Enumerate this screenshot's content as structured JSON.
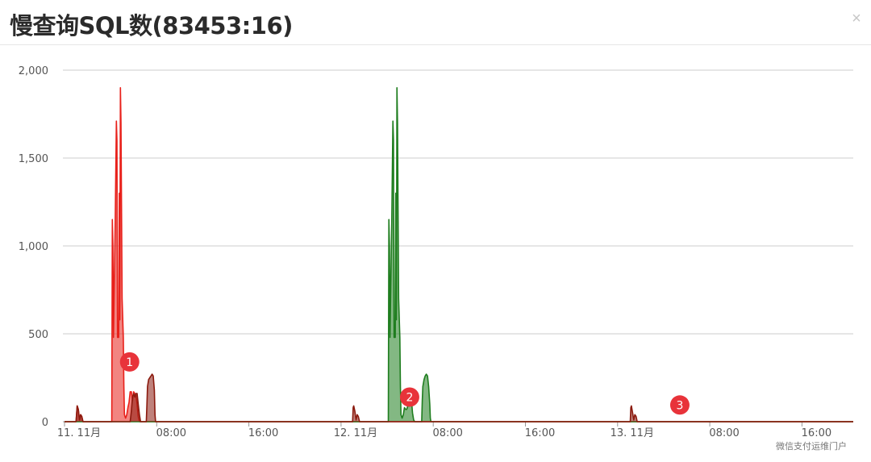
{
  "window": {
    "title": "慢查询SQL数(83453:16)",
    "close_glyph": "×"
  },
  "watermark": "微信支付运维门户",
  "colors": {
    "series_1": "#e8201a",
    "series_2": "#1e7d1e",
    "series_3": "#8b1a0e",
    "badge": "#e8333a",
    "grid": "#cccccc"
  },
  "chart_data": {
    "type": "line",
    "title": "慢查询SQL数(83453:16)",
    "ylim": [
      0,
      2000
    ],
    "yticks": [
      {
        "v": 0,
        "label": "0"
      },
      {
        "v": 500,
        "label": "500"
      },
      {
        "v": 1000,
        "label": "1,000"
      },
      {
        "v": 1500,
        "label": "1,500"
      },
      {
        "v": 2000,
        "label": "2,000"
      }
    ],
    "xlim": [
      0,
      64
    ],
    "xticks": [
      {
        "h": 0,
        "label": "11. 11月"
      },
      {
        "h": 8,
        "label": "08:00"
      },
      {
        "h": 16,
        "label": "16:00"
      },
      {
        "h": 24,
        "label": "12. 11月"
      },
      {
        "h": 32,
        "label": "08:00"
      },
      {
        "h": 40,
        "label": "16:00"
      },
      {
        "h": 48,
        "label": "13. 11月"
      },
      {
        "h": 56,
        "label": "08:00"
      },
      {
        "h": 64,
        "label": "16:00"
      }
    ],
    "grid": true,
    "series": [
      {
        "key": "s1",
        "label": "1",
        "color": "#e8201a",
        "x": [
          0,
          1.0,
          1.1,
          1.2,
          1.3,
          1.4,
          1.5,
          1.6,
          4.1,
          4.15,
          4.2,
          4.25,
          4.3,
          4.4,
          4.5,
          4.55,
          4.6,
          4.7,
          4.75,
          4.8,
          4.85,
          4.9,
          5.0,
          5.1,
          5.15,
          5.2,
          5.3,
          5.4,
          5.5,
          5.6,
          5.7,
          5.8,
          5.9,
          6.0,
          6.1,
          6.2,
          6.3,
          6.4,
          6.5,
          70
        ],
        "y": [
          0,
          0,
          90,
          70,
          10,
          40,
          30,
          0,
          0,
          1150,
          1000,
          480,
          700,
          1150,
          1710,
          1600,
          480,
          480,
          1300,
          580,
          1900,
          1700,
          700,
          480,
          200,
          40,
          20,
          40,
          80,
          110,
          170,
          170,
          120,
          170,
          160,
          150,
          100,
          30,
          0,
          0
        ]
      },
      {
        "key": "s2",
        "label": "2",
        "color": "#1e7d1e",
        "x": [
          0,
          28.1,
          28.15,
          28.2,
          28.25,
          28.3,
          28.4,
          28.5,
          28.55,
          28.6,
          28.7,
          28.75,
          28.8,
          28.85,
          28.9,
          29.0,
          29.1,
          29.15,
          29.2,
          29.3,
          29.4,
          29.5,
          29.6,
          29.7,
          29.8,
          29.9,
          30.0,
          30.1,
          30.2,
          30.3,
          30.4,
          30.6,
          31.0,
          31.05,
          31.1,
          31.2,
          31.3,
          31.4,
          31.5,
          31.6,
          31.7,
          31.75,
          31.8,
          70
        ],
        "y": [
          0,
          0,
          1150,
          1000,
          480,
          700,
          1150,
          1710,
          1600,
          480,
          480,
          1300,
          580,
          1900,
          1700,
          700,
          480,
          200,
          40,
          20,
          40,
          80,
          70,
          70,
          90,
          150,
          160,
          130,
          50,
          10,
          0,
          0,
          0,
          120,
          200,
          240,
          260,
          270,
          260,
          200,
          100,
          20,
          0,
          0
        ]
      },
      {
        "key": "s3",
        "label": "3",
        "color": "#8b1a0e",
        "x": [
          0,
          1.0,
          1.1,
          1.2,
          1.3,
          1.4,
          1.5,
          1.6,
          5.7,
          5.8,
          5.9,
          6.0,
          6.1,
          6.2,
          6.3,
          6.4,
          6.5,
          6.6,
          6.7,
          6.8,
          6.9,
          7.0,
          7.1,
          7.15,
          7.2,
          7.3,
          7.4,
          7.5,
          7.6,
          7.7,
          7.8,
          7.85,
          7.9,
          25.0,
          25.05,
          25.1,
          25.2,
          25.3,
          25.4,
          25.5,
          25.6,
          25.7,
          49.1,
          49.15,
          49.2,
          49.3,
          49.4,
          49.5,
          49.6,
          49.7,
          70
        ],
        "y": [
          0,
          0,
          90,
          70,
          10,
          40,
          30,
          0,
          0,
          60,
          140,
          160,
          140,
          160,
          160,
          100,
          40,
          0,
          0,
          0,
          0,
          0,
          0,
          100,
          200,
          240,
          250,
          260,
          270,
          260,
          180,
          40,
          0,
          0,
          80,
          90,
          60,
          10,
          40,
          30,
          0,
          0,
          0,
          80,
          90,
          50,
          10,
          40,
          30,
          0,
          0
        ]
      }
    ],
    "annotations": [
      {
        "label": "1",
        "h": 5.65,
        "v": 340
      },
      {
        "label": "2",
        "h": 29.95,
        "v": 140
      },
      {
        "label": "3",
        "h": 53.4,
        "v": 95
      }
    ]
  }
}
